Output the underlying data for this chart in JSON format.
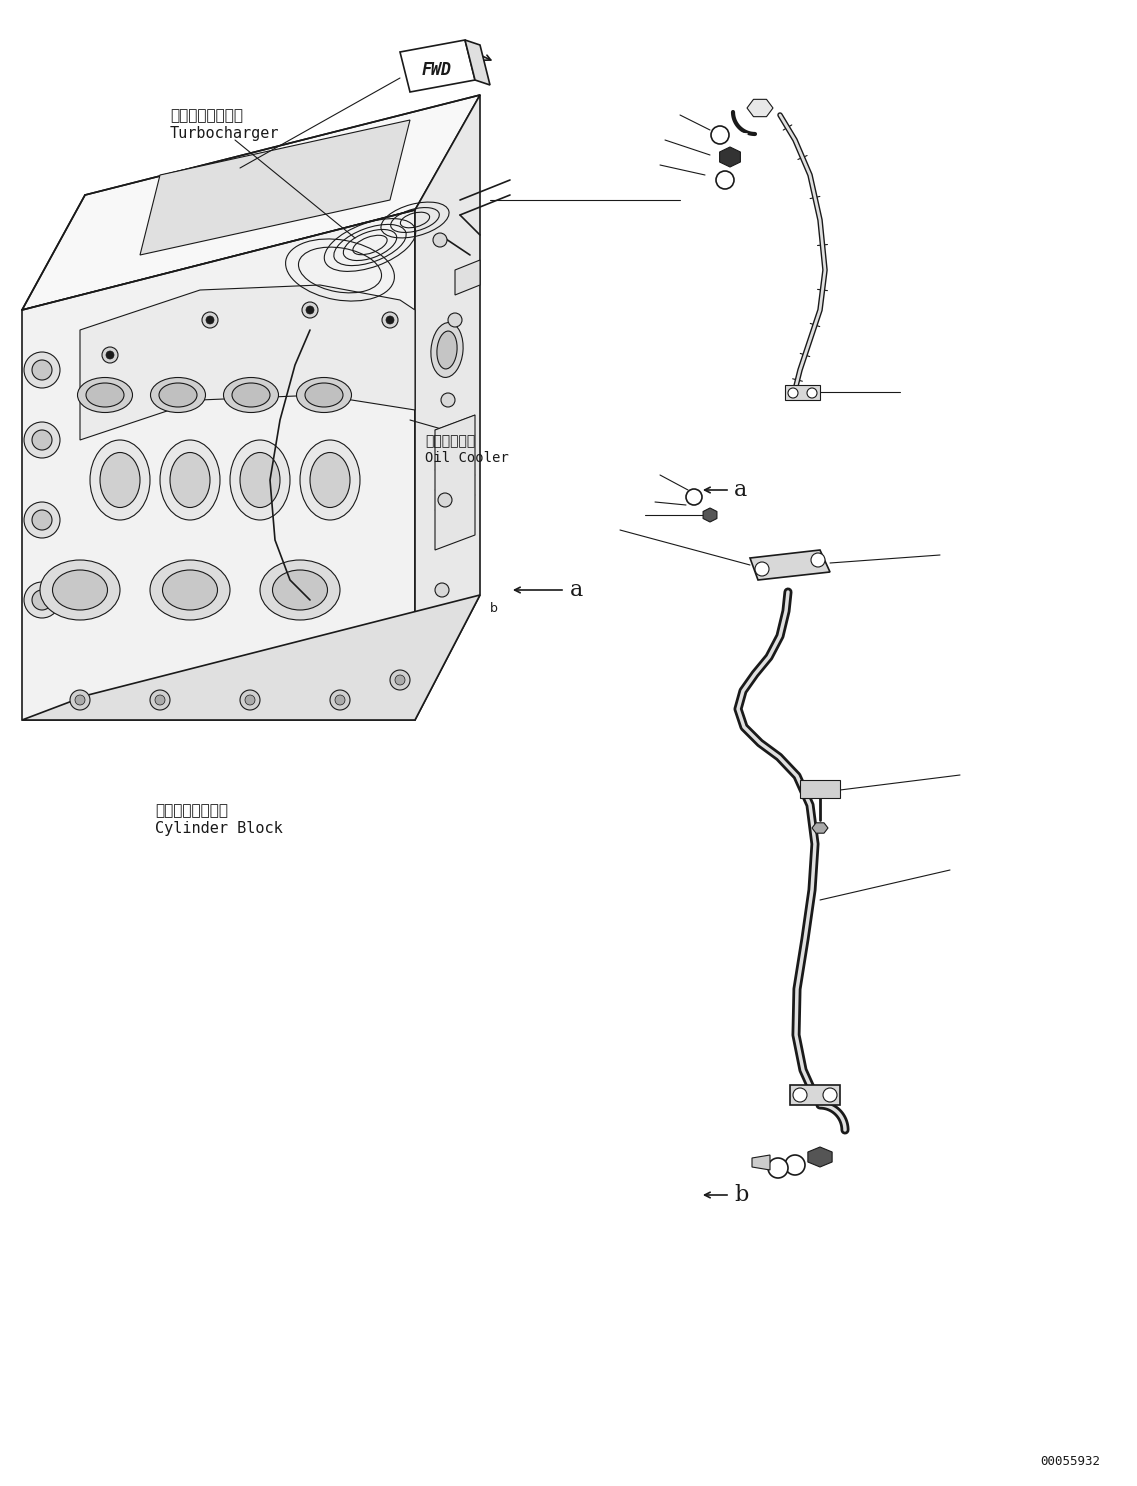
{
  "figsize": [
    11.37,
    14.86
  ],
  "dpi": 100,
  "bg_color": "#ffffff",
  "title_code": "00055932",
  "labels": {
    "turbocharger_jp": "ターボチャージャ",
    "turbocharger_en": "Turbocharger",
    "oil_cooler_jp": "オイルクーラ",
    "oil_cooler_en": "Oil Cooler",
    "cylinder_block_jp": "シリンダブロック",
    "cylinder_block_en": "Cylinder Block",
    "fwd": "FWD",
    "label_a": "a",
    "label_b": "b"
  },
  "font_sizes": {
    "label": 10,
    "small": 8,
    "code": 8,
    "fwd": 12,
    "callout": 16
  },
  "colors": {
    "line": "#1a1a1a",
    "line_med": "#333333",
    "line_light": "#666666",
    "fill_light": "#f0f0f0",
    "fill_mid": "#cccccc",
    "white": "#ffffff"
  }
}
